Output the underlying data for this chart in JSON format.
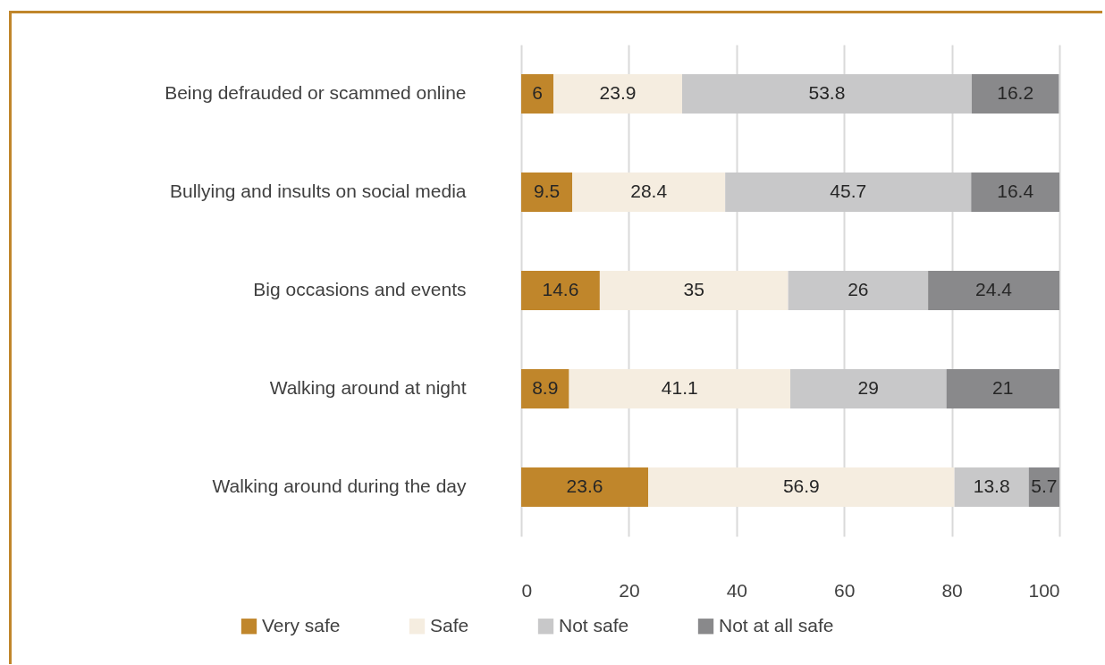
{
  "chart_data": {
    "type": "bar",
    "orientation": "horizontal",
    "stacked": true,
    "data_labels": true,
    "grid": "x",
    "legend": "bottom",
    "categories": [
      "Being defrauded or scammed online",
      "Bullying and insults on social media",
      "Big occasions and events",
      "Walking around at night",
      "Walking around during the day"
    ],
    "series": [
      {
        "name": "Very safe",
        "color": "#c0862b",
        "values": [
          6,
          9.5,
          14.6,
          8.9,
          23.6
        ]
      },
      {
        "name": "Safe",
        "color": "#f5ede0",
        "values": [
          23.9,
          28.4,
          35,
          41.1,
          56.9
        ]
      },
      {
        "name": "Not safe",
        "color": "#c8c8c9",
        "values": [
          53.8,
          45.7,
          26,
          29,
          13.8
        ]
      },
      {
        "name": "Not at all safe",
        "color": "#89898b",
        "values": [
          16.2,
          16.4,
          24.4,
          21,
          5.7
        ]
      }
    ],
    "xlim": [
      0,
      100
    ],
    "xticks": [
      0,
      20,
      40,
      60,
      80,
      100
    ]
  }
}
